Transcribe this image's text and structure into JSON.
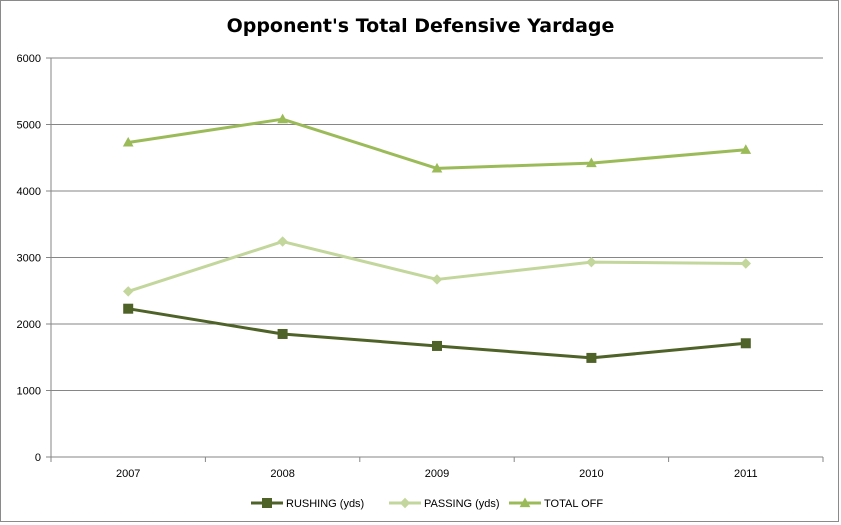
{
  "chart_data": {
    "type": "line",
    "title": "Opponent's Total Defensive Yardage",
    "xlabel": "",
    "ylabel": "",
    "categories": [
      "2007",
      "2008",
      "2009",
      "2010",
      "2011"
    ],
    "ylim": [
      0,
      6000
    ],
    "yticks": [
      0,
      1000,
      2000,
      3000,
      4000,
      5000,
      6000
    ],
    "grid": true,
    "legend_position": "bottom",
    "series": [
      {
        "name": "RUSHING (yds)",
        "values": [
          2230,
          1850,
          1670,
          1490,
          1710
        ],
        "color": "#4f6228",
        "marker": "square"
      },
      {
        "name": "PASSING (yds)",
        "values": [
          2490,
          3240,
          2670,
          2930,
          2910
        ],
        "color": "#c3d69b",
        "marker": "diamond"
      },
      {
        "name": "TOTAL OFF",
        "values": [
          4730,
          5080,
          4340,
          4420,
          4620
        ],
        "color": "#9bbb59",
        "marker": "triangle"
      }
    ]
  }
}
